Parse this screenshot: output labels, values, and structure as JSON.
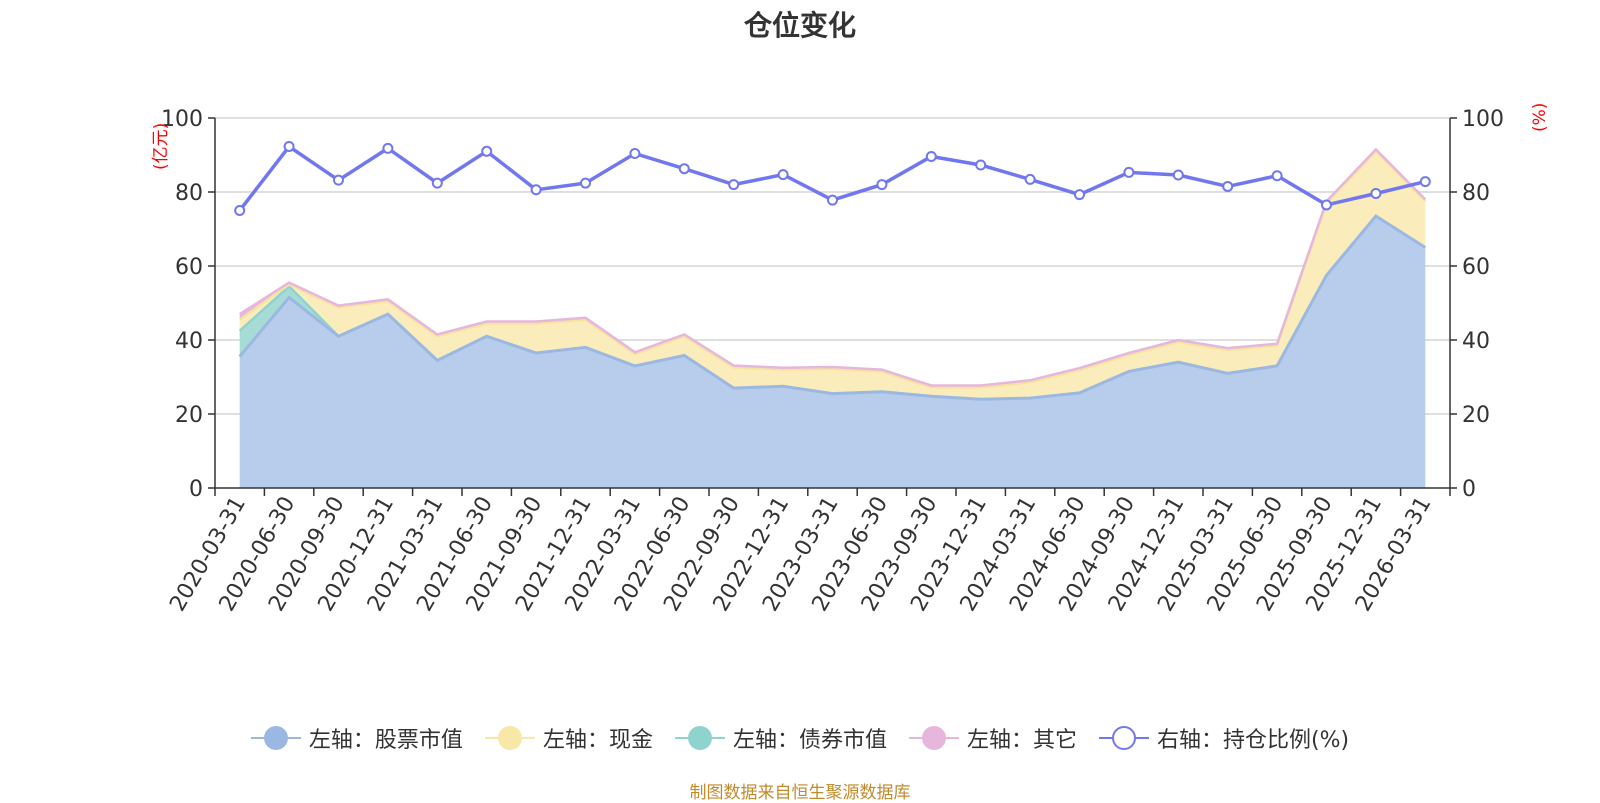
{
  "title": "仓位变化",
  "source": "制图数据来自恒生聚源数据库",
  "chart_data": {
    "type": "area",
    "title": "仓位变化",
    "left_axis": {
      "unit": "(亿元)",
      "range": [
        0,
        100
      ],
      "ticks": [
        "0",
        "20",
        "40",
        "60",
        "80",
        "100"
      ]
    },
    "right_axis": {
      "unit": "(%)",
      "range": [
        0,
        100
      ],
      "ticks": [
        "0",
        "20",
        "40",
        "60",
        "80",
        "100"
      ]
    },
    "categories": [
      "2020-03-31",
      "2020-06-30",
      "2020-09-30",
      "2020-12-31",
      "2021-03-31",
      "2021-06-30",
      "2021-09-30",
      "2021-12-31",
      "2022-03-31",
      "2022-06-30",
      "2022-09-30",
      "2022-12-31",
      "2023-03-31",
      "2023-06-30",
      "2023-09-30",
      "2023-12-31",
      "2024-03-31",
      "2024-06-30",
      "2024-09-30",
      "2024-12-31",
      "2025-03-31",
      "2025-06-30",
      "2025-09-30",
      "2025-12-31",
      "2026-03-31"
    ],
    "series": [
      {
        "name": "左轴：股票市值",
        "axis": "left",
        "kind": "stacked-area",
        "values": [
          35.5,
          51.5,
          41,
          47,
          34.5,
          41,
          36.5,
          38,
          33,
          35.8,
          27,
          27.5,
          25.5,
          26,
          24.8,
          24,
          24.3,
          25.7,
          31.5,
          34,
          31,
          33,
          57.5,
          73.5,
          65
        ]
      },
      {
        "name": "左轴：债券市值",
        "axis": "left",
        "kind": "stacked-area",
        "values": [
          7,
          3,
          0,
          0,
          0,
          0,
          0,
          0,
          0,
          0,
          0,
          0,
          0,
          0,
          0,
          0,
          0,
          0,
          0,
          0,
          0,
          0,
          0,
          0,
          0
        ]
      },
      {
        "name": "左轴：现金",
        "axis": "left",
        "kind": "stacked-area",
        "values": [
          3,
          0.5,
          7.8,
          3.5,
          6.5,
          3.5,
          8,
          7.5,
          3.2,
          5.2,
          5.6,
          4.5,
          6.7,
          5.5,
          2.4,
          3.2,
          4.3,
          6.2,
          4.5,
          5.5,
          6.3,
          5.5,
          19.5,
          17.5,
          12.5
        ]
      },
      {
        "name": "左轴：其它",
        "axis": "left",
        "kind": "stacked-area",
        "values": [
          1.5,
          0.5,
          0.5,
          0.5,
          0.5,
          0.5,
          0.5,
          0.5,
          0.5,
          0.5,
          0.5,
          0.5,
          0.5,
          0.5,
          0.5,
          0.5,
          0.5,
          0.5,
          0.5,
          0.5,
          0.5,
          0.5,
          0.5,
          0.5,
          0.5
        ]
      },
      {
        "name": "右轴：持仓比例(%)",
        "axis": "right",
        "kind": "line",
        "values": [
          75,
          92.3,
          83.2,
          91.8,
          82.4,
          91,
          80.6,
          82.4,
          90.4,
          86.3,
          82,
          84.7,
          77.8,
          82,
          89.6,
          87.3,
          83.4,
          79.3,
          85.3,
          84.6,
          81.5,
          84.4,
          76.5,
          79.6,
          82.8
        ]
      }
    ]
  },
  "legend": [
    {
      "label": "左轴：股票市值",
      "color": "#9bb8e2",
      "hollow": false
    },
    {
      "label": "左轴：现金",
      "color": "#f9e7a8",
      "hollow": false
    },
    {
      "label": "左轴：债券市值",
      "color": "#8fd3cf",
      "hollow": false
    },
    {
      "label": "左轴：其它",
      "color": "#e7b6dc",
      "hollow": false
    },
    {
      "label": "右轴：持仓比例(%)",
      "color": "#7177ee",
      "hollow": true
    }
  ],
  "colors": {
    "stock_fill": "#b8cdeb",
    "stock_line": "#9bb8e2",
    "bond_fill": "#a7dcd6",
    "bond_line": "#8fd3cf",
    "cash_fill": "#fbecbb",
    "cash_line": "#f5e3a0",
    "other_line": "#e7b6dc",
    "ratio_line": "#7177ee",
    "unit_red": "#ff0000",
    "source": "#c28a2a",
    "grid": "#cccccc",
    "axis": "#333333"
  }
}
